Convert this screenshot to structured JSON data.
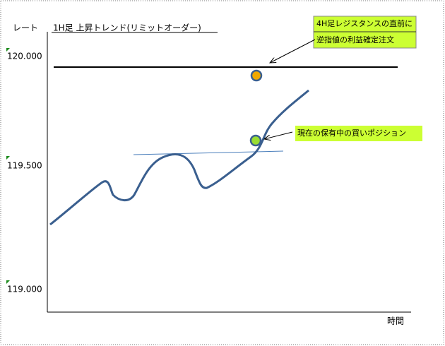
{
  "y_axis_label": "レート",
  "title": "1H足 上昇トレンド(リミットオーダー)",
  "y_tick_labels": [
    "120.000",
    "119.500",
    "119.000"
  ],
  "x_axis_label": "時間",
  "annotations": {
    "resistance": [
      "4H足レジスタンスの直前に",
      "逆指値の利益確定注文"
    ],
    "position": "現在の保有中の買いポジション"
  }
}
